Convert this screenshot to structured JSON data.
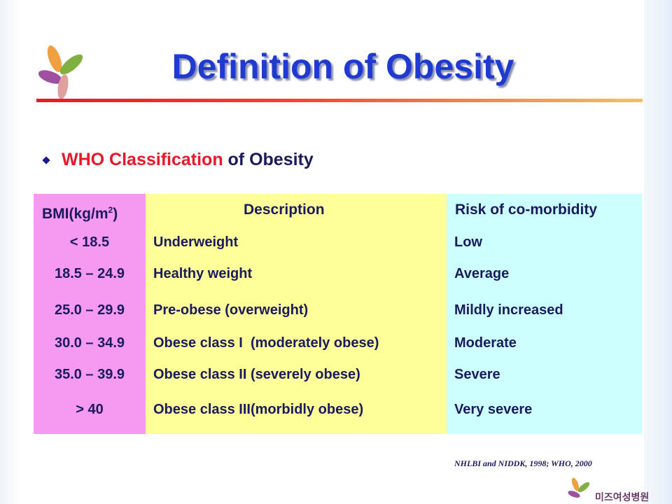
{
  "title": "Definition of Obesity",
  "bullet": {
    "highlight": "WHO Classification",
    "rest": " of Obesity"
  },
  "table": {
    "header": [
      {
        "text": "BMI(kg/m",
        "sup": "2",
        "after": ")"
      },
      {
        "text": "Description"
      },
      {
        "text": "Risk of co-morbidity"
      }
    ],
    "rows": [
      [
        "< 18.5",
        "Underweight",
        "Low"
      ],
      [
        "18.5 – 24.9",
        "Healthy weight",
        "Average"
      ],
      [
        "25.0 – 29.9",
        "Pre-obese (overweight)",
        "Mildly increased"
      ],
      [
        "30.0 – 34.9",
        "Obese class I  (moderately obese)",
        "Moderate"
      ],
      [
        "35.0 – 39.9",
        "Obese class II (severely obese)",
        "Severe"
      ],
      [
        "> 40",
        "Obese class III(morbidly obese)",
        "Very severe"
      ]
    ]
  },
  "citation": "NHLBI and NIDDK, 1998; WHO, 2000",
  "logo": {
    "name": "미즈여성병원"
  }
}
